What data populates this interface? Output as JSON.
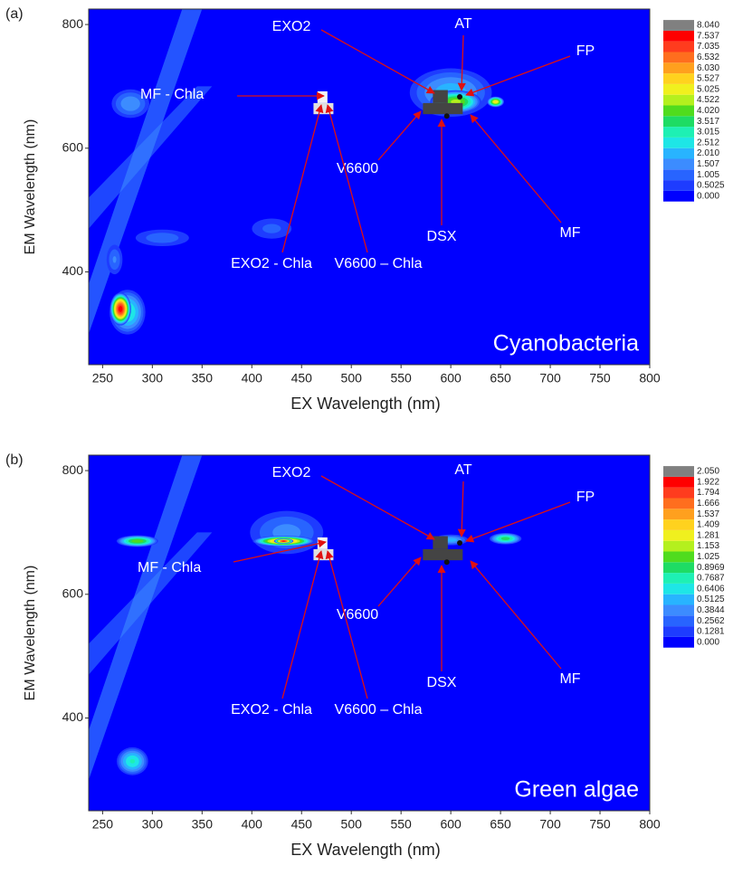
{
  "chart_data": [
    {
      "type": "contour",
      "panel_label": "(a)",
      "name": "Cyanobacteria",
      "x_label": "EX Wavelength (nm)",
      "y_label": "EM Wavelength (nm)",
      "xlim": [
        236,
        800
      ],
      "ylim": [
        250,
        825
      ],
      "xticks": [
        250,
        300,
        350,
        400,
        450,
        500,
        550,
        600,
        650,
        700,
        750,
        800
      ],
      "yticks": [
        400,
        600,
        800
      ],
      "levels": [
        {
          "value": 0,
          "label": "0.000"
        },
        0.5025,
        1.005,
        1.507,
        {
          "value": 2.01,
          "label": "2.010"
        },
        2.512,
        3.015,
        3.517,
        {
          "value": 4.02,
          "label": "4.020"
        },
        4.522,
        5.025,
        5.527,
        {
          "value": 6.03,
          "label": "6.030"
        },
        6.532,
        7.035,
        7.537,
        {
          "value": 8.04,
          "label": "8.040"
        }
      ],
      "colors": [
        "#0000ff",
        "#1e3cff",
        "#2864ff",
        "#3c8cff",
        "#28b4ff",
        "#1ee6e6",
        "#1ef0b4",
        "#1edc64",
        "#50dc1e",
        "#b4f01e",
        "#f0f01e",
        "#ffd21e",
        "#ffa01e",
        "#ff6e1e",
        "#ff3c1e",
        "#ff0000",
        "#808080"
      ],
      "peaks": [
        {
          "ex": 275,
          "em": 335,
          "ex_width": 40,
          "em_width": 80,
          "value": 3.2
        },
        {
          "ex": 268,
          "em": 340,
          "ex_width": 22,
          "em_width": 55,
          "value": 8.0
        },
        {
          "ex": 600,
          "em": 690,
          "ex_width": 95,
          "em_width": 90,
          "value": 2.4
        },
        {
          "ex": 605,
          "em": 675,
          "ex_width": 55,
          "em_width": 40,
          "value": 4.8
        },
        {
          "ex": 645,
          "em": 675,
          "ex_width": 18,
          "em_width": 18,
          "value": 5.6
        },
        {
          "ex": 278,
          "em": 672,
          "ex_width": 45,
          "em_width": 55,
          "value": 2.0
        },
        {
          "ex": 310,
          "em": 455,
          "ex_width": 70,
          "em_width": 35,
          "value": 1.4
        },
        {
          "ex": 420,
          "em": 470,
          "ex_width": 55,
          "em_width": 45,
          "value": 1.2
        },
        {
          "ex": 262,
          "em": 420,
          "ex_width": 20,
          "em_width": 60,
          "value": 1.6
        }
      ],
      "annotations": [
        "EXO2",
        "AT",
        "FP",
        "MF - Chla",
        "V6600",
        "DSX",
        "MF",
        "EXO2 - Chla",
        "V6600 – Chla"
      ]
    },
    {
      "type": "contour",
      "panel_label": "(b)",
      "name": "Green algae",
      "x_label": "EX Wavelength (nm)",
      "y_label": "EM Wavelength (nm)",
      "xlim": [
        236,
        800
      ],
      "ylim": [
        250,
        825
      ],
      "xticks": [
        250,
        300,
        350,
        400,
        450,
        500,
        550,
        600,
        650,
        700,
        750,
        800
      ],
      "yticks": [
        400,
        600,
        800
      ],
      "levels": [
        {
          "value": 0,
          "label": "0.000"
        },
        0.1281,
        0.2562,
        0.3844,
        0.5125,
        0.6406,
        0.7687,
        0.8969,
        1.025,
        1.153,
        1.281,
        1.409,
        1.537,
        1.666,
        1.794,
        1.922,
        {
          "value": 2.05,
          "label": "2.050"
        }
      ],
      "colors": [
        "#0000ff",
        "#1e3cff",
        "#2864ff",
        "#3c8cff",
        "#28b4ff",
        "#1ee6e6",
        "#1ef0b4",
        "#1edc64",
        "#50dc1e",
        "#b4f01e",
        "#f0f01e",
        "#ffd21e",
        "#ffa01e",
        "#ff6e1e",
        "#ff3c1e",
        "#ff0000",
        "#808080"
      ],
      "peaks": [
        {
          "ex": 435,
          "em": 700,
          "ex_width": 90,
          "em_width": 85,
          "value": 0.45
        },
        {
          "ex": 432,
          "em": 686,
          "ex_width": 65,
          "em_width": 18,
          "value": 1.7
        },
        {
          "ex": 432,
          "em": 686,
          "ex_width": 20,
          "em_width": 9,
          "value": 2.0
        },
        {
          "ex": 285,
          "em": 686,
          "ex_width": 45,
          "em_width": 20,
          "value": 1.15
        },
        {
          "ex": 600,
          "em": 688,
          "ex_width": 40,
          "em_width": 20,
          "value": 0.6
        },
        {
          "ex": 655,
          "em": 690,
          "ex_width": 35,
          "em_width": 20,
          "value": 1.0
        },
        {
          "ex": 280,
          "em": 330,
          "ex_width": 35,
          "em_width": 50,
          "value": 0.8
        }
      ],
      "annotations": [
        "EXO2",
        "AT",
        "FP",
        "MF - Chla",
        "V6600",
        "DSX",
        "MF",
        "EXO2 - Chla",
        "V6600 – Chla"
      ]
    }
  ]
}
